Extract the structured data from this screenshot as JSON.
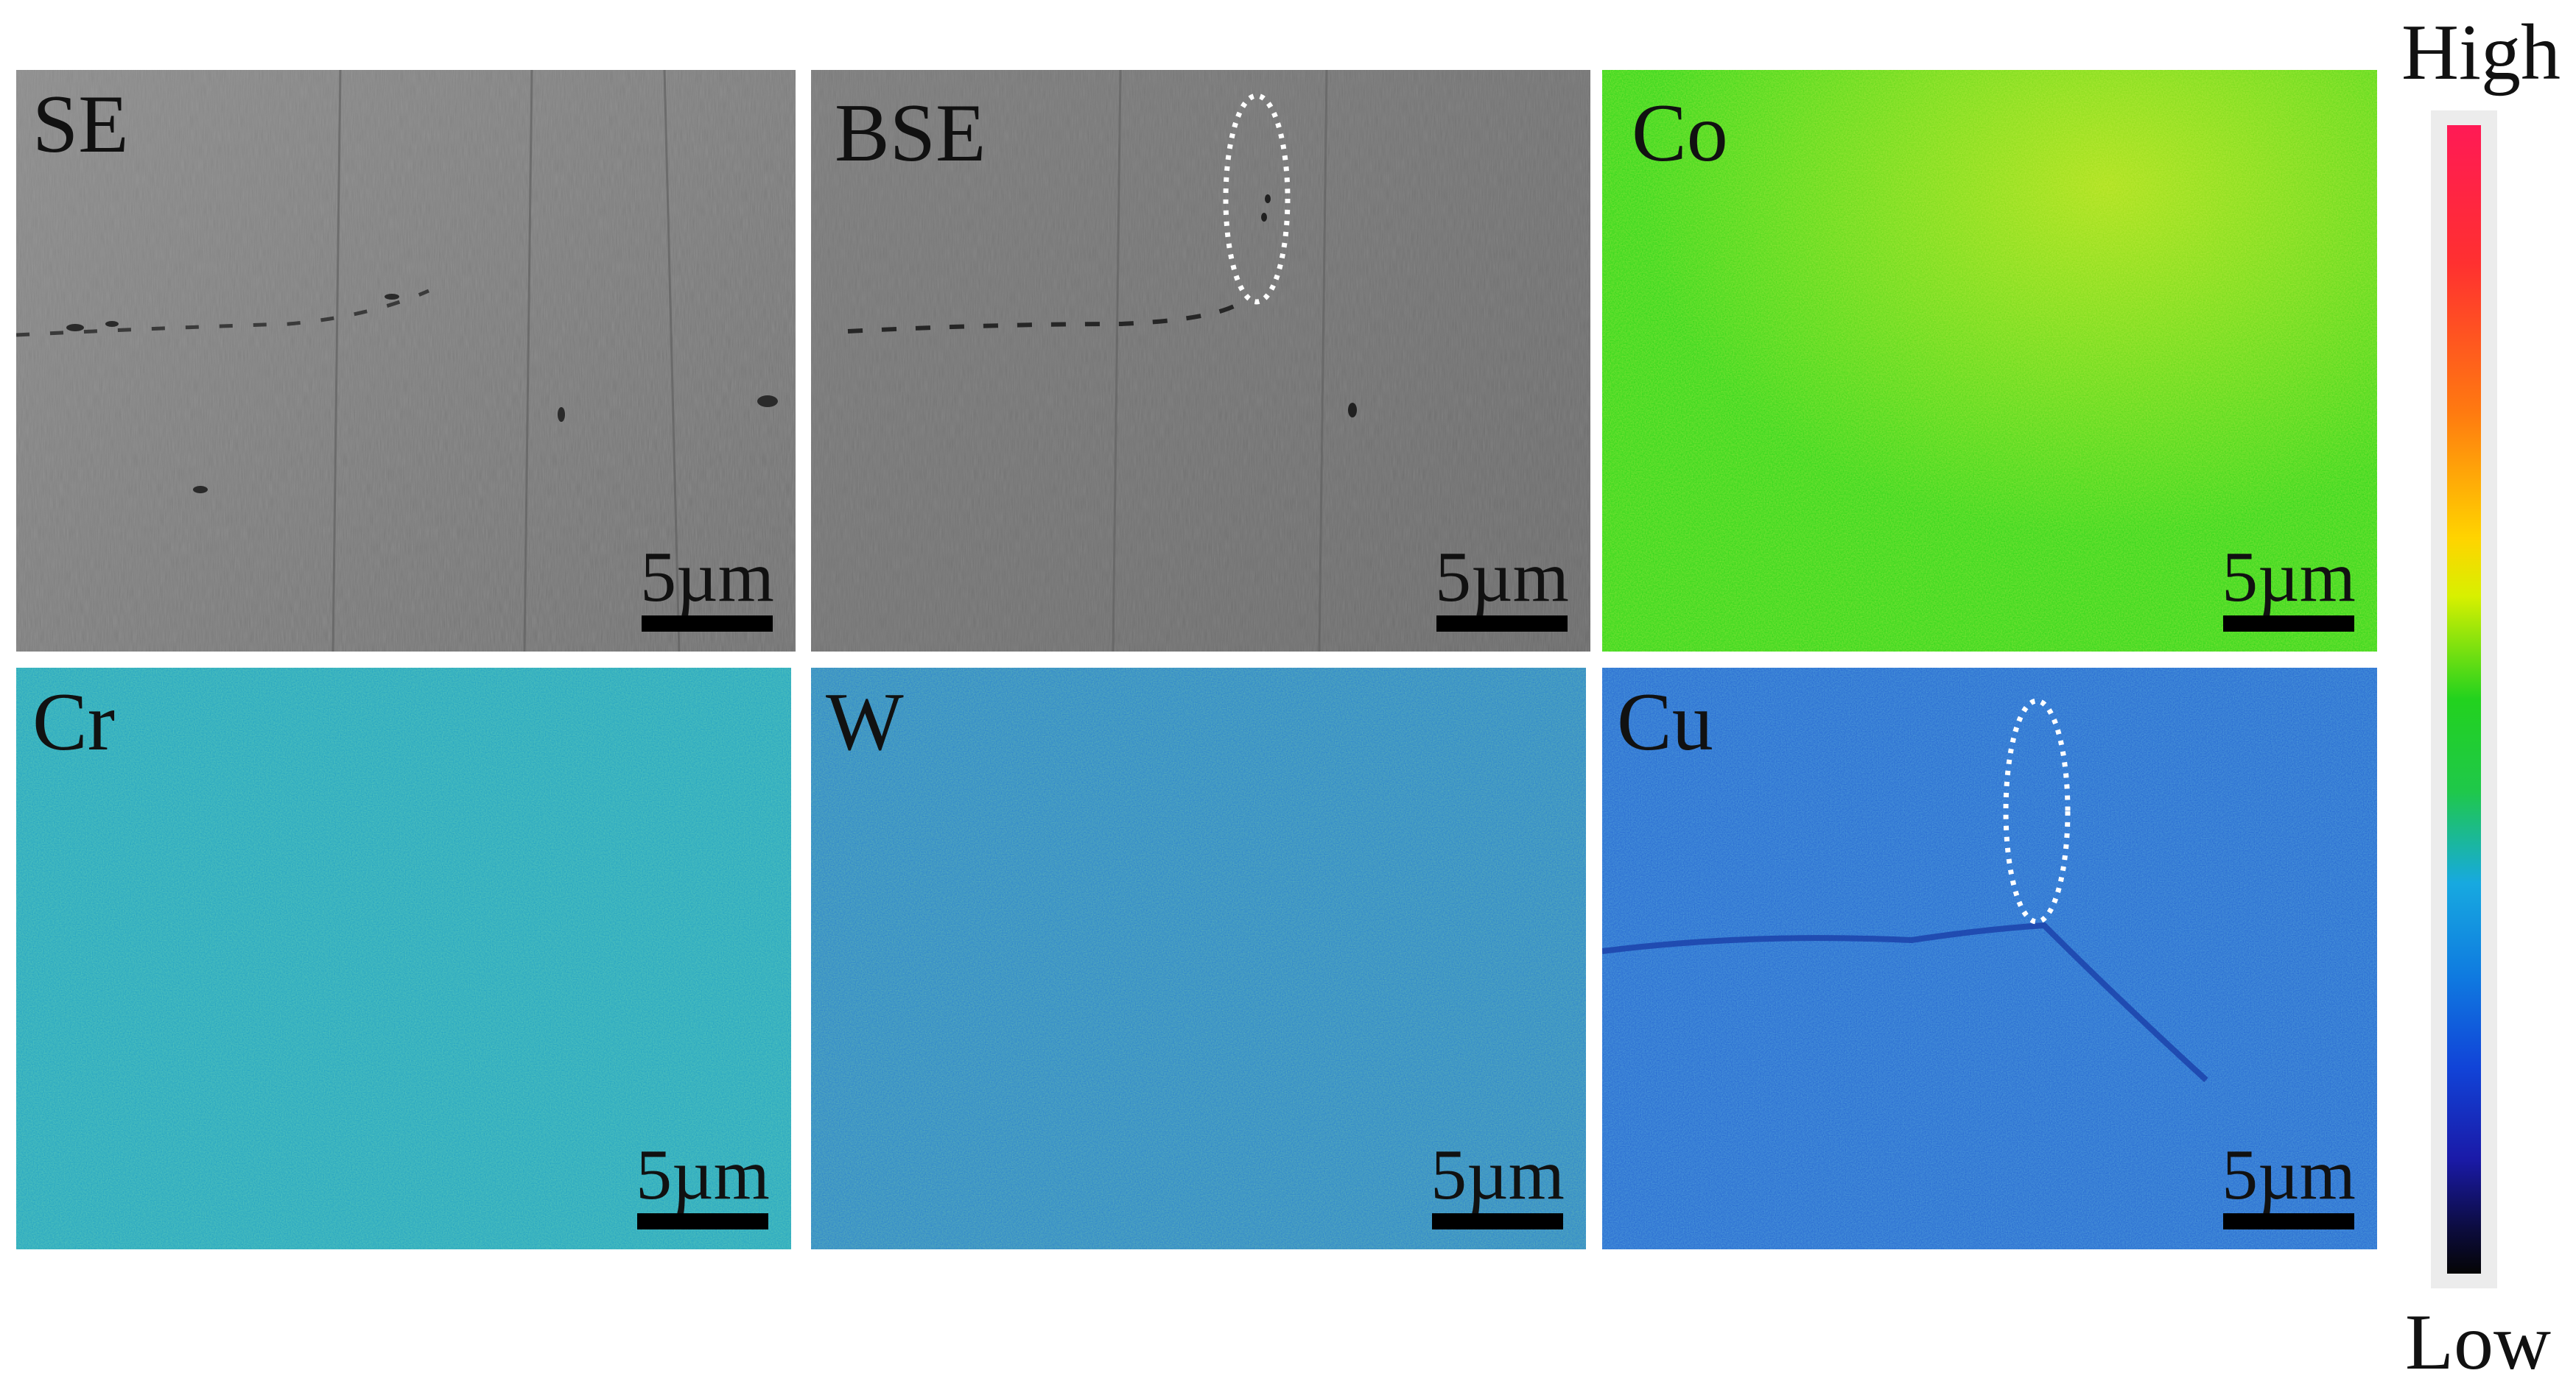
{
  "panels": [
    {
      "label": "SE",
      "scale": "5µm"
    },
    {
      "label": "BSE",
      "scale": "5µm"
    },
    {
      "label": "Co",
      "scale": "5µm"
    },
    {
      "label": "Cr",
      "scale": "5µm"
    },
    {
      "label": "W",
      "scale": "5µm"
    },
    {
      "label": "Cu",
      "scale": "5µm"
    }
  ],
  "colorbar": {
    "high": "High",
    "low": "Low"
  },
  "colors": {
    "sem_gray": "#7c7c7c",
    "co_map": "#2bd61a",
    "cr_map": "#22a8b8",
    "w_map": "#2a8ed0",
    "cu_map": "#2570d2",
    "annotation": "#ffffff"
  }
}
